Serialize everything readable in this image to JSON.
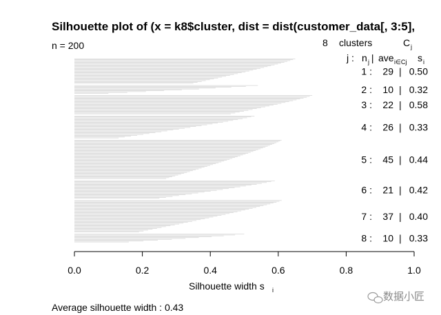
{
  "chart_data": {
    "type": "bar",
    "title": "Silhouette plot of (x = k8$cluster, dist = dist(customer_data[, 3:5],",
    "n_label": "n = 200",
    "clusters_header": {
      "k": "8",
      "word": "clusters",
      "c_letter": "C",
      "c_sub": "j"
    },
    "columns_header": {
      "j": "j :",
      "n": "n",
      "n_sub": "j",
      "sep": " | ",
      "ave": "ave",
      "ave_sub": "i∈Cj",
      "s": "s",
      "s_sub": "i"
    },
    "clusters": [
      {
        "label": "1 :",
        "n": "29",
        "ave": "0.50",
        "n_int": 29,
        "ave_val": 0.5,
        "max": 0.65
      },
      {
        "label": "2 :",
        "n": "10",
        "ave": "0.32",
        "n_int": 10,
        "ave_val": 0.32,
        "max": 0.54
      },
      {
        "label": "3 :",
        "n": "22",
        "ave": "0.58",
        "n_int": 22,
        "ave_val": 0.58,
        "max": 0.7
      },
      {
        "label": "4 :",
        "n": "26",
        "ave": "0.33",
        "n_int": 26,
        "ave_val": 0.33,
        "max": 0.53
      },
      {
        "label": "5 :",
        "n": "45",
        "ave": "0.44",
        "n_int": 45,
        "ave_val": 0.44,
        "max": 0.61
      },
      {
        "label": "6 :",
        "n": "21",
        "ave": "0.42",
        "n_int": 21,
        "ave_val": 0.42,
        "max": 0.59
      },
      {
        "label": "7 :",
        "n": "37",
        "ave": "0.40",
        "n_int": 37,
        "ave_val": 0.4,
        "max": 0.61
      },
      {
        "label": "8 :",
        "n": "10",
        "ave": "0.33",
        "n_int": 10,
        "ave_val": 0.33,
        "max": 0.5
      }
    ],
    "xlim": [
      0,
      1
    ],
    "x_ticks": [
      "0.0",
      "0.2",
      "0.4",
      "0.6",
      "0.8",
      "1.0"
    ],
    "xlabel": "Silhouette width s",
    "xlabel_sub": "i",
    "avg_text": "Average silhouette width :  0.43",
    "bar_color": "#d3d3d3",
    "axis_color": "#000000"
  },
  "watermark": {
    "text": "数据小匠",
    "icon": "wechat-icon"
  }
}
